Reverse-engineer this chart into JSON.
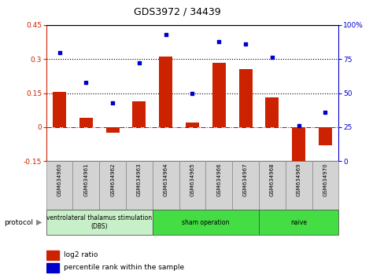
{
  "title": "GDS3972 / 34439",
  "samples": [
    "GSM634960",
    "GSM634961",
    "GSM634962",
    "GSM634963",
    "GSM634964",
    "GSM634965",
    "GSM634966",
    "GSM634967",
    "GSM634968",
    "GSM634969",
    "GSM634970"
  ],
  "log2_ratio": [
    0.155,
    0.04,
    -0.025,
    0.115,
    0.31,
    0.02,
    0.285,
    0.255,
    0.13,
    -0.19,
    -0.08
  ],
  "percentile_rank": [
    80,
    58,
    43,
    72,
    93,
    50,
    88,
    86,
    76,
    26,
    36
  ],
  "group_ranges": [
    [
      0,
      3,
      "ventrolateral thalamus stimulation\n(DBS)",
      "#c8f0c8"
    ],
    [
      4,
      7,
      "sham operation",
      "#44dd44"
    ],
    [
      8,
      10,
      "naive",
      "#44dd44"
    ]
  ],
  "ylim_left": [
    -0.15,
    0.45
  ],
  "ylim_right": [
    0,
    100
  ],
  "yticks_left": [
    -0.15,
    0,
    0.15,
    0.3,
    0.45
  ],
  "yticks_right": [
    0,
    25,
    50,
    75,
    100
  ],
  "bar_color": "#cc2200",
  "dot_color": "#0000cc",
  "hline_color": "#cc0000",
  "dotted_line_values": [
    0.15,
    0.3
  ],
  "dotted_line_color": "black",
  "background_color": "#ffffff",
  "group_label_text": "protocol",
  "legend_log2": "log2 ratio",
  "legend_pct": "percentile rank within the sample",
  "sample_box_color": "#d3d3d3",
  "bar_width": 0.5
}
